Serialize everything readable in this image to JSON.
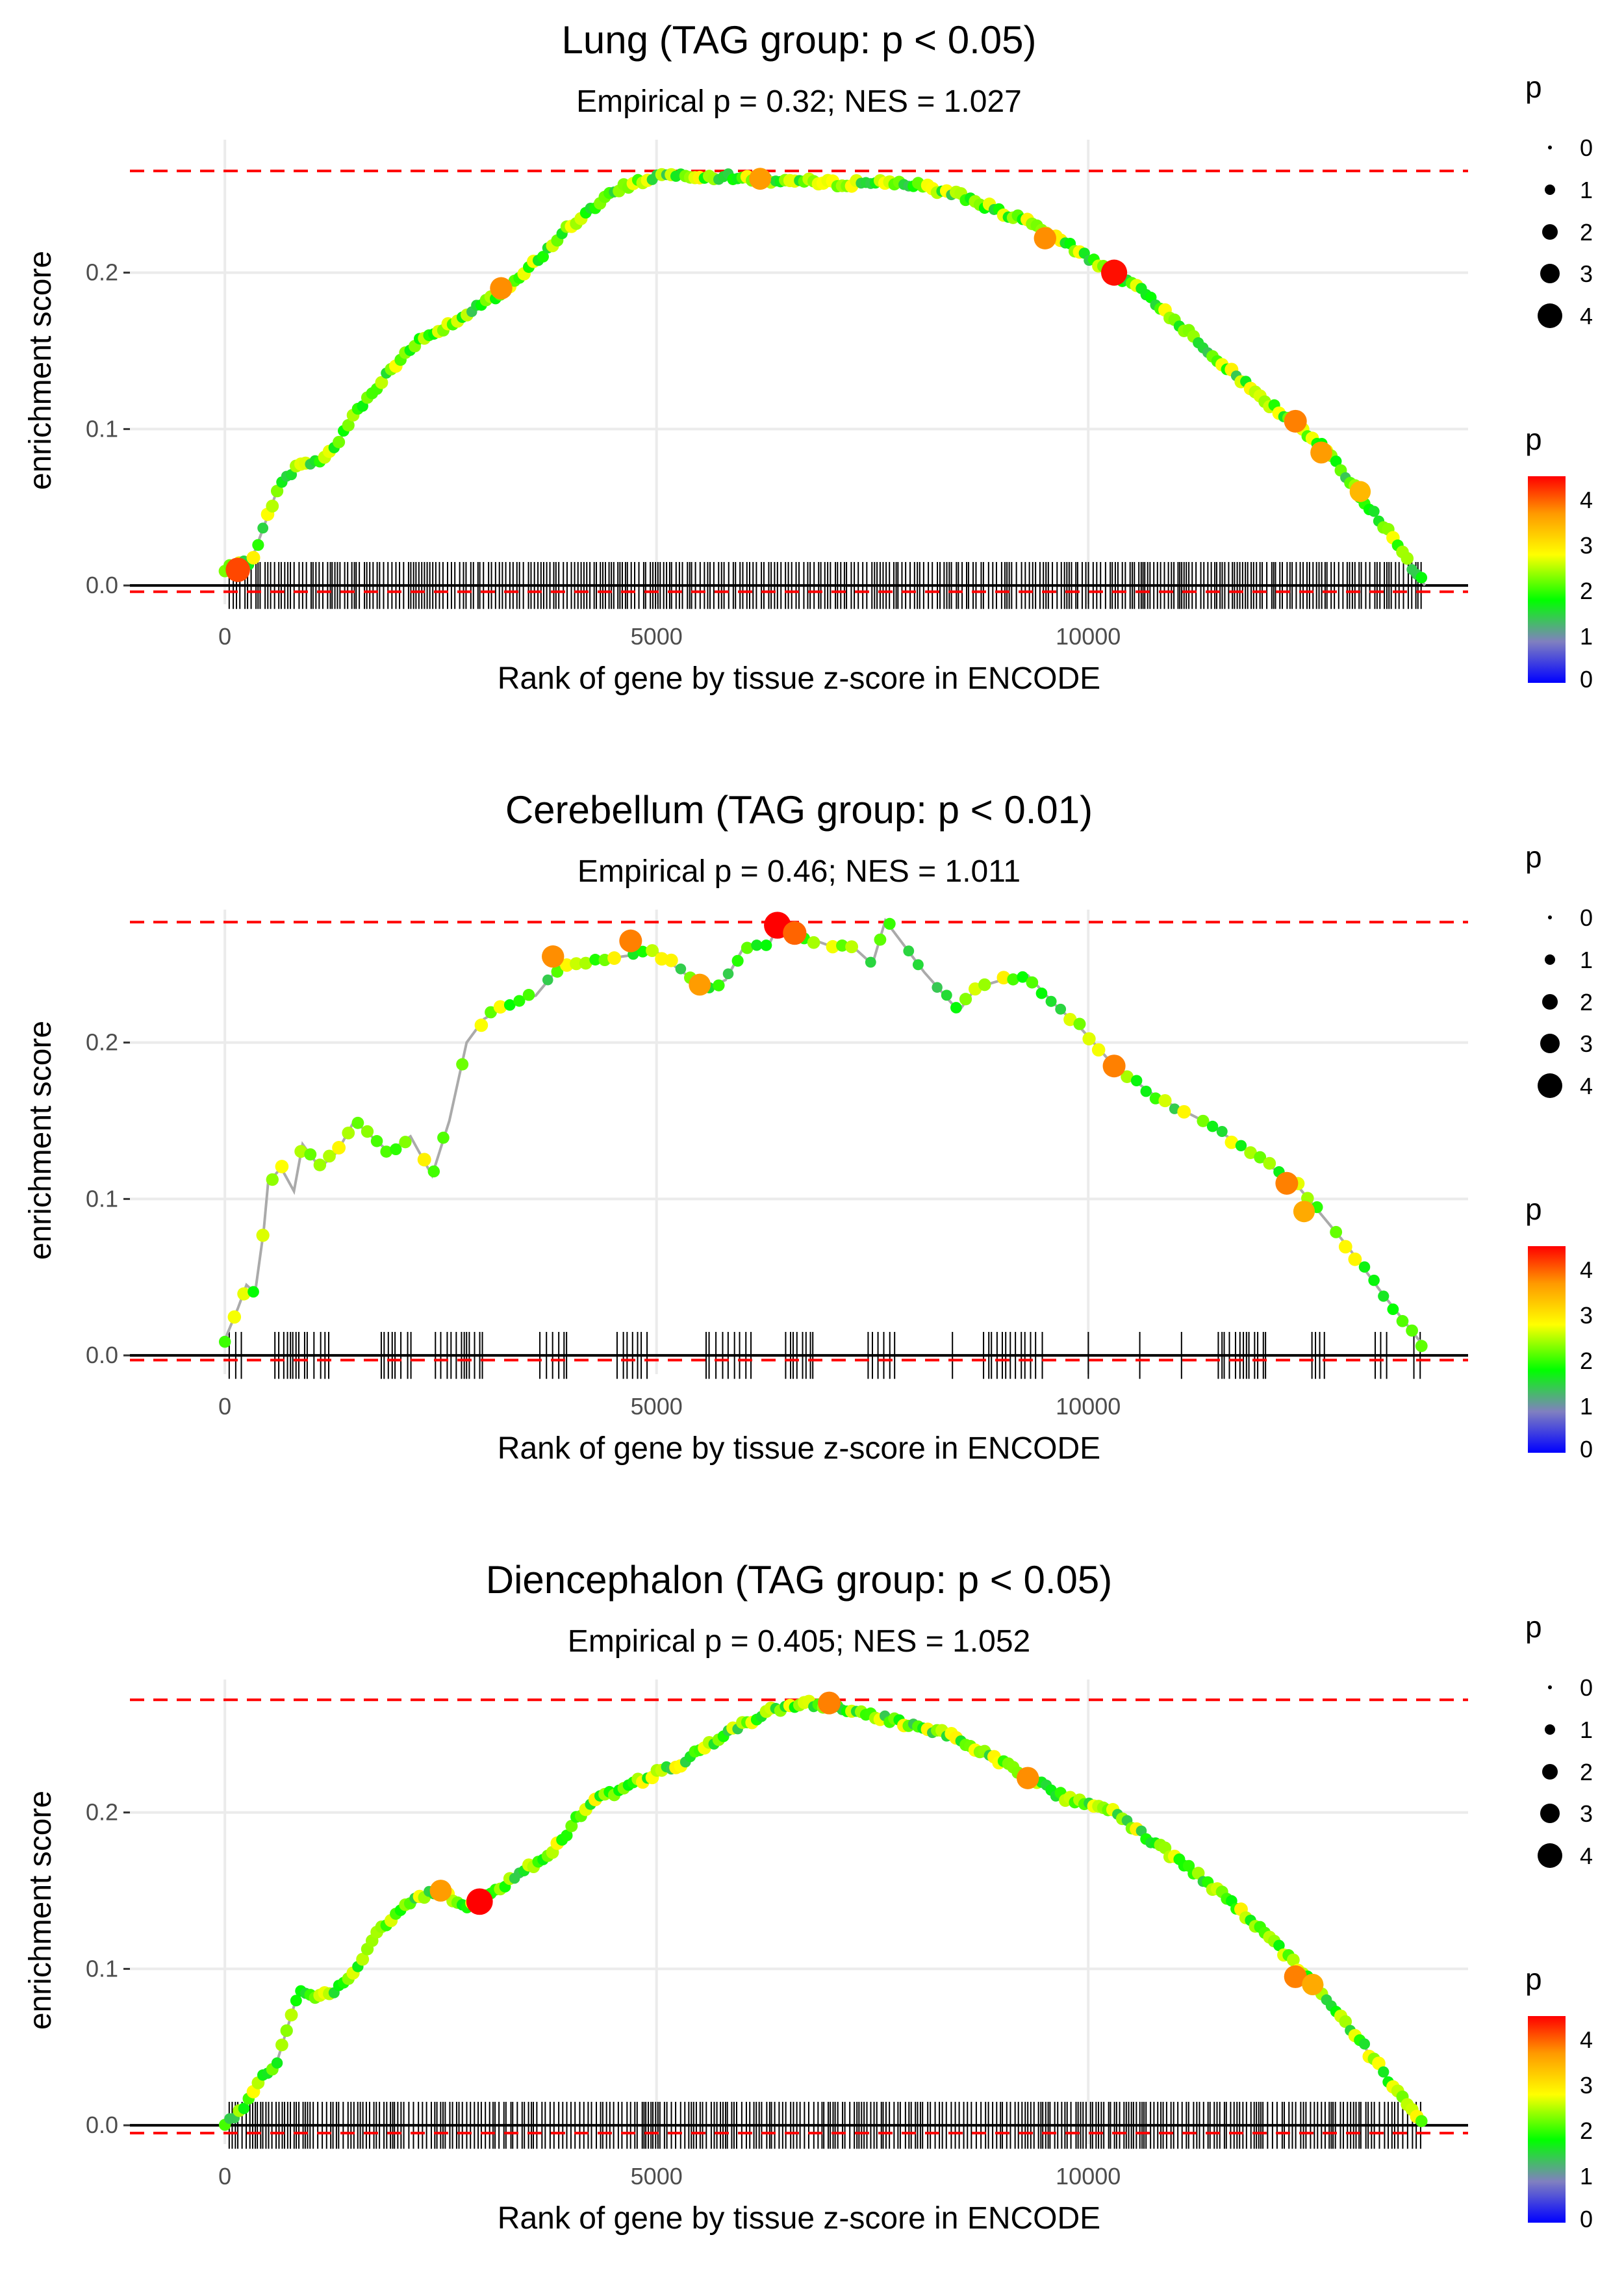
{
  "figure": {
    "description_colors": {
      "reference_line": "#ff0000",
      "curve_line": "#aaaaaa",
      "baseline": "#000000",
      "grid": "#ebebeb"
    },
    "colorscale": [
      "#0000ff",
      "#8080c0",
      "#00ff00",
      "#ffff00",
      "#ff8000",
      "#ff0000"
    ]
  },
  "chart_data": [
    {
      "type": "line",
      "title": "Lung (TAG group: p < 0.05)",
      "subtitle": "Empirical p = 0.32; NES = 1.027",
      "xlabel": "Rank of gene by tissue z-score in ENCODE",
      "ylabel": "enrichment score",
      "xlim": [
        -1100,
        14400
      ],
      "ylim": [
        -0.012,
        0.285
      ],
      "xticks": [
        0,
        5000,
        10000
      ],
      "xtick_labels": [
        "0",
        "5000",
        "10000"
      ],
      "yticks": [
        0.0,
        0.1,
        0.2
      ],
      "ytick_labels": [
        "0.0",
        "0.1",
        "0.2"
      ],
      "ref_lines": [
        0.265,
        -0.004
      ],
      "curve": [
        [
          0,
          0.01
        ],
        [
          300,
          0.015
        ],
        [
          600,
          0.06
        ],
        [
          800,
          0.075
        ],
        [
          1100,
          0.08
        ],
        [
          1300,
          0.09
        ],
        [
          1500,
          0.11
        ],
        [
          1800,
          0.13
        ],
        [
          2200,
          0.155
        ],
        [
          2700,
          0.17
        ],
        [
          3300,
          0.19
        ],
        [
          4000,
          0.23
        ],
        [
          4600,
          0.255
        ],
        [
          5100,
          0.263
        ],
        [
          5600,
          0.262
        ],
        [
          6200,
          0.26
        ],
        [
          7000,
          0.257
        ],
        [
          7800,
          0.258
        ],
        [
          8500,
          0.25
        ],
        [
          9300,
          0.232
        ],
        [
          10000,
          0.21
        ],
        [
          10700,
          0.185
        ],
        [
          11400,
          0.15
        ],
        [
          12000,
          0.12
        ],
        [
          12700,
          0.09
        ],
        [
          13400,
          0.04
        ],
        [
          13900,
          0.0
        ]
      ],
      "highlights": [
        [
          150,
          0.01,
          4
        ],
        [
          3200,
          0.19,
          3.5
        ],
        [
          6200,
          0.26,
          3.4
        ],
        [
          9500,
          0.222,
          3.5
        ],
        [
          10300,
          0.2,
          4.4
        ],
        [
          12400,
          0.105,
          3.6
        ],
        [
          12700,
          0.085,
          3.4
        ],
        [
          13150,
          0.06,
          3.2
        ]
      ],
      "rug": {
        "start": 50,
        "end": 13900,
        "density": "dense"
      },
      "legend_size": {
        "title": "p",
        "labels": [
          "0",
          "1",
          "2",
          "3",
          "4"
        ]
      },
      "legend_color": {
        "title": "p",
        "labels": [
          "4",
          "3",
          "2",
          "1",
          "0"
        ],
        "range": [
          0,
          4.5
        ]
      }
    },
    {
      "type": "line",
      "title": "Cerebellum (TAG group: p < 0.01)",
      "subtitle": "Empirical p = 0.46; NES = 1.011",
      "xlabel": "Rank of gene by tissue z-score in ENCODE",
      "ylabel": "enrichment score",
      "xlim": [
        -1100,
        14400
      ],
      "ylim": [
        -0.012,
        0.285
      ],
      "xticks": [
        0,
        5000,
        10000
      ],
      "xtick_labels": [
        "0",
        "5000",
        "10000"
      ],
      "yticks": [
        0.0,
        0.1,
        0.2
      ],
      "ytick_labels": [
        "0.0",
        "0.1",
        "0.2"
      ],
      "ref_lines": [
        0.277,
        -0.003
      ],
      "curve": [
        [
          0,
          0.01
        ],
        [
          150,
          0.03
        ],
        [
          250,
          0.045
        ],
        [
          350,
          0.04
        ],
        [
          450,
          0.08
        ],
        [
          500,
          0.11
        ],
        [
          650,
          0.12
        ],
        [
          800,
          0.105
        ],
        [
          900,
          0.135
        ],
        [
          1100,
          0.12
        ],
        [
          1300,
          0.13
        ],
        [
          1500,
          0.15
        ],
        [
          1700,
          0.14
        ],
        [
          1900,
          0.13
        ],
        [
          2150,
          0.14
        ],
        [
          2400,
          0.115
        ],
        [
          2600,
          0.15
        ],
        [
          2800,
          0.2
        ],
        [
          3000,
          0.215
        ],
        [
          3300,
          0.225
        ],
        [
          3600,
          0.23
        ],
        [
          3900,
          0.25
        ],
        [
          4200,
          0.25
        ],
        [
          4600,
          0.255
        ],
        [
          5000,
          0.258
        ],
        [
          5300,
          0.245
        ],
        [
          5600,
          0.235
        ],
        [
          5800,
          0.24
        ],
        [
          6000,
          0.26
        ],
        [
          6300,
          0.262
        ],
        [
          6400,
          0.275
        ],
        [
          6700,
          0.268
        ],
        [
          7000,
          0.262
        ],
        [
          7300,
          0.26
        ],
        [
          7500,
          0.25
        ],
        [
          7650,
          0.278
        ],
        [
          8100,
          0.245
        ],
        [
          8500,
          0.22
        ],
        [
          8700,
          0.235
        ],
        [
          9000,
          0.24
        ],
        [
          9300,
          0.243
        ],
        [
          9600,
          0.225
        ],
        [
          9900,
          0.21
        ],
        [
          10300,
          0.185
        ],
        [
          10800,
          0.165
        ],
        [
          11400,
          0.148
        ],
        [
          12000,
          0.125
        ],
        [
          12400,
          0.11
        ],
        [
          12700,
          0.09
        ],
        [
          13000,
          0.07
        ],
        [
          13400,
          0.04
        ],
        [
          13900,
          0.005
        ]
      ],
      "highlights": [
        [
          3800,
          0.255,
          3.5
        ],
        [
          4700,
          0.265,
          3.6
        ],
        [
          5500,
          0.237,
          3.4
        ],
        [
          6400,
          0.275,
          4.6
        ],
        [
          6600,
          0.27,
          3.8
        ],
        [
          10300,
          0.185,
          3.6
        ],
        [
          12300,
          0.11,
          3.6
        ],
        [
          12500,
          0.092,
          3.3
        ]
      ],
      "rug": {
        "start": 50,
        "end": 13900,
        "density": "sparse"
      },
      "legend_size": {
        "title": "p",
        "labels": [
          "0",
          "1",
          "2",
          "3",
          "4"
        ]
      },
      "legend_color": {
        "title": "p",
        "labels": [
          "4",
          "3",
          "2",
          "1",
          "0"
        ],
        "range": [
          0,
          4.5
        ]
      }
    },
    {
      "type": "line",
      "title": "Diencephalon (TAG group: p < 0.05)",
      "subtitle": "Empirical p = 0.405; NES = 1.052",
      "xlabel": "Rank of gene by tissue z-score in ENCODE",
      "ylabel": "enrichment score",
      "xlim": [
        -1100,
        14400
      ],
      "ylim": [
        -0.012,
        0.285
      ],
      "xticks": [
        0,
        5000,
        10000
      ],
      "xtick_labels": [
        "0",
        "5000",
        "10000"
      ],
      "yticks": [
        0.0,
        0.1,
        0.2
      ],
      "ytick_labels": [
        "0.0",
        "0.1",
        "0.2"
      ],
      "ref_lines": [
        0.272,
        -0.005
      ],
      "curve": [
        [
          0,
          0.0
        ],
        [
          200,
          0.01
        ],
        [
          400,
          0.03
        ],
        [
          600,
          0.04
        ],
        [
          850,
          0.085
        ],
        [
          1100,
          0.082
        ],
        [
          1400,
          0.09
        ],
        [
          1800,
          0.125
        ],
        [
          2200,
          0.145
        ],
        [
          2500,
          0.15
        ],
        [
          2800,
          0.14
        ],
        [
          3000,
          0.145
        ],
        [
          3400,
          0.16
        ],
        [
          3800,
          0.175
        ],
        [
          4200,
          0.205
        ],
        [
          4800,
          0.22
        ],
        [
          5300,
          0.232
        ],
        [
          5800,
          0.25
        ],
        [
          6300,
          0.265
        ],
        [
          6700,
          0.27
        ],
        [
          7200,
          0.265
        ],
        [
          7800,
          0.258
        ],
        [
          8400,
          0.25
        ],
        [
          9000,
          0.232
        ],
        [
          9700,
          0.21
        ],
        [
          10300,
          0.2
        ],
        [
          10900,
          0.175
        ],
        [
          11500,
          0.15
        ],
        [
          12100,
          0.12
        ],
        [
          12700,
          0.085
        ],
        [
          13200,
          0.05
        ],
        [
          13600,
          0.02
        ],
        [
          13900,
          0.0
        ]
      ],
      "highlights": [
        [
          2500,
          0.15,
          3.4
        ],
        [
          2950,
          0.143,
          4.5
        ],
        [
          7000,
          0.27,
          3.6
        ],
        [
          9300,
          0.222,
          3.5
        ],
        [
          12400,
          0.095,
          3.6
        ],
        [
          12600,
          0.09,
          3.3
        ]
      ],
      "rug": {
        "start": 50,
        "end": 13900,
        "density": "dense"
      },
      "legend_size": {
        "title": "p",
        "labels": [
          "0",
          "1",
          "2",
          "3",
          "4"
        ]
      },
      "legend_color": {
        "title": "p",
        "labels": [
          "4",
          "3",
          "2",
          "1",
          "0"
        ],
        "range": [
          0,
          4.5
        ]
      }
    }
  ]
}
